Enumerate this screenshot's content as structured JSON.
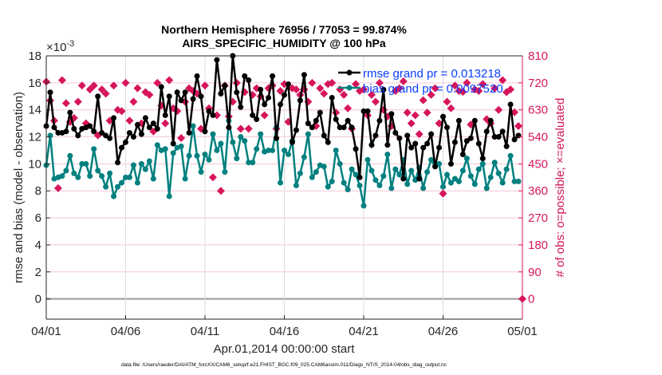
{
  "chart_data": {
    "type": "line",
    "title": "Northern Hemisphere 76956 / 77053 = 99.874%",
    "subtitle": "AIRS_SPECIFIC_HUMIDITY @ 100 hPa",
    "xlabel": "Apr.01,2014 00:00:00 start",
    "ylabel": "rmse and bias (model - observation)",
    "ylabel_right": "# of obs: o=possible; ×=evaluated",
    "y_exponent_label": "×10",
    "y_exponent_power": "-3",
    "footnote": "data file: /Users/raeder/DAI/ATM_forcXX/CAM6_setup/f.e21.FHIST_BGC.f09_025.CAM6assim.011/Diags_NTrS_2014-04/obs_diag_output.nc",
    "x_ticks": [
      "04/01",
      "04/06",
      "04/11",
      "04/16",
      "04/21",
      "04/26",
      "05/01"
    ],
    "y_ticks": [
      "0",
      "2",
      "4",
      "6",
      "8",
      "10",
      "12",
      "14",
      "16",
      "18"
    ],
    "y_right_ticks": [
      "0",
      "90",
      "180",
      "270",
      "360",
      "450",
      "540",
      "630",
      "720",
      "810"
    ],
    "ylim": [
      -0.0015,
      0.018
    ],
    "ylim_right": [
      -67.5,
      810
    ],
    "grid": true,
    "legend_position": "top-right",
    "colors": {
      "rmse": "#000000",
      "bias": "#00807f",
      "obs": "#d6155c",
      "legend_text": "#0a3cff"
    },
    "x": [
      "04/01 00",
      "04/01 06",
      "04/01 12",
      "04/01 18",
      "04/02 00",
      "04/02 06",
      "04/02 12",
      "04/02 18",
      "04/03 00",
      "04/03 06",
      "04/03 12",
      "04/03 18",
      "04/04 00",
      "04/04 06",
      "04/04 12",
      "04/04 18",
      "04/05 00",
      "04/05 06",
      "04/05 12",
      "04/05 18",
      "04/06 00",
      "04/06 06",
      "04/06 12",
      "04/06 18",
      "04/07 00",
      "04/07 06",
      "04/07 12",
      "04/07 18",
      "04/08 00",
      "04/08 06",
      "04/08 12",
      "04/08 18",
      "04/09 00",
      "04/09 06",
      "04/09 12",
      "04/09 18",
      "04/10 00",
      "04/10 06",
      "04/10 12",
      "04/10 18",
      "04/11 00",
      "04/11 06",
      "04/11 12",
      "04/11 18",
      "04/12 00",
      "04/12 06",
      "04/12 12",
      "04/12 18",
      "04/13 00",
      "04/13 06",
      "04/13 12",
      "04/13 18",
      "04/14 00",
      "04/14 06",
      "04/14 12",
      "04/14 18",
      "04/15 00",
      "04/15 06",
      "04/15 12",
      "04/15 18",
      "04/16 00",
      "04/16 06",
      "04/16 12",
      "04/16 18",
      "04/17 00",
      "04/17 06",
      "04/17 12",
      "04/17 18",
      "04/18 00",
      "04/18 06",
      "04/18 12",
      "04/18 18",
      "04/19 00",
      "04/19 06",
      "04/19 12",
      "04/19 18",
      "04/20 00",
      "04/20 06",
      "04/20 12",
      "04/20 18",
      "04/21 00",
      "04/21 06",
      "04/21 12",
      "04/21 18",
      "04/22 00",
      "04/22 06",
      "04/22 12",
      "04/22 18",
      "04/23 00",
      "04/23 06",
      "04/23 12",
      "04/23 18",
      "04/24 00",
      "04/24 06",
      "04/24 12",
      "04/24 18",
      "04/25 00",
      "04/25 06",
      "04/25 12",
      "04/25 18",
      "04/26 00",
      "04/26 06",
      "04/26 12",
      "04/26 18",
      "04/27 00",
      "04/27 06",
      "04/27 12",
      "04/27 18",
      "04/28 00",
      "04/28 06",
      "04/28 12",
      "04/28 18",
      "04/29 00",
      "04/29 06",
      "04/29 12",
      "04/29 18",
      "04/30 00",
      "04/30 06",
      "04/30 12",
      "04/30 18"
    ],
    "series": [
      {
        "name": "rmse grand pr = 0.013218",
        "axis": "left",
        "unit_scale": 0.001,
        "values": [
          12.8,
          15.3,
          12.7,
          12.3,
          12.3,
          12.4,
          13.8,
          12.6,
          12.1,
          12.6,
          12.7,
          12.8,
          12.4,
          15.0,
          12.3,
          12.1,
          11.9,
          13.4,
          10.1,
          11.2,
          11.6,
          12.3,
          12.0,
          12.9,
          12.2,
          13.4,
          12.7,
          13.0,
          12.6,
          15.7,
          13.6,
          15.0,
          11.5,
          15.3,
          14.7,
          15.3,
          12.3,
          14.8,
          16.5,
          15.0,
          12.4,
          13.9,
          13.6,
          17.7,
          15.2,
          15.8,
          12.7,
          18.0,
          15.3,
          14.2,
          16.5,
          16.2,
          13.6,
          13.3,
          15.5,
          14.4,
          14.9,
          16.5,
          11.9,
          14.4,
          15.1,
          15.9,
          11.6,
          12.5,
          14.7,
          16.6,
          13.0,
          12.7,
          13.2,
          13.8,
          12.1,
          11.6,
          14.9,
          13.3,
          12.7,
          12.7,
          13.2,
          12.7,
          11.1,
          9.0,
          13.9,
          13.9,
          11.4,
          12.1,
          13.2,
          15.5,
          11.4,
          13.7,
          12.3,
          11.9,
          8.9,
          12.1,
          11.2,
          11.5,
          8.9,
          11.2,
          11.5,
          12.2,
          9.8,
          11.2,
          13.5,
          12.7,
          10.0,
          11.6,
          13.2,
          10.7,
          11.7,
          11.9,
          13.2,
          11.5,
          10.4,
          12.4,
          13.2,
          12.0,
          12.0,
          12.4,
          11.3,
          14.4,
          11.8,
          12.1
        ]
      },
      {
        "name": "bias grand pr = 0.0097520",
        "axis": "left",
        "unit_scale": 0.001,
        "values": [
          9.9,
          12.1,
          8.9,
          9.0,
          9.1,
          9.5,
          10.6,
          9.3,
          9.0,
          10.0,
          10.0,
          9.1,
          11.1,
          9.5,
          9.1,
          8.3,
          9.3,
          7.6,
          8.3,
          8.6,
          9.0,
          9.0,
          9.9,
          8.6,
          10.0,
          9.6,
          10.2,
          8.9,
          11.4,
          11.0,
          11.1,
          7.6,
          10.8,
          11.2,
          11.3,
          8.9,
          10.6,
          12.8,
          10.6,
          9.4,
          10.7,
          10.3,
          12.2,
          11.0,
          11.5,
          9.4,
          13.2,
          11.6,
          10.4,
          12.0,
          11.7,
          10.1,
          10.1,
          11.1,
          12.2,
          10.9,
          11.0,
          11.0,
          12.7,
          8.6,
          11.0,
          10.7,
          11.7,
          8.4,
          9.3,
          10.5,
          12.2,
          9.0,
          9.4,
          9.9,
          9.8,
          8.3,
          8.7,
          11.0,
          10.0,
          8.6,
          8.1,
          9.6,
          9.2,
          8.4,
          6.9,
          10.3,
          9.5,
          8.8,
          8.4,
          9.1,
          10.7,
          8.2,
          9.6,
          9.2,
          10.3,
          8.5,
          9.5,
          8.8,
          9.7,
          8.2,
          9.4,
          10.3,
          9.8,
          10.0,
          8.3,
          9.2,
          8.6,
          8.9,
          8.7,
          9.5,
          10.4,
          9.1,
          8.5,
          9.6,
          10.0,
          8.2,
          9.0,
          10.1,
          9.3,
          8.6,
          9.6,
          10.6,
          8.7,
          8.7
        ]
      },
      {
        "axis": "right",
        "values": [
          724,
          661,
          594,
          369,
          729,
          652,
          590,
          603,
          657,
          711,
          585,
          698,
          711,
          545,
          698,
          684,
          594,
          711,
          630,
          626,
          720,
          594,
          657,
          702,
          585,
          689,
          680,
          558,
          720,
          644,
          585,
          729,
          635,
          626,
          536,
          657,
          702,
          693,
          684,
          567,
          711,
          635,
          405,
          612,
          360,
          711,
          608,
          657,
          720,
          567,
          689,
          567,
          680,
          702,
          675,
          612,
          702,
          711,
          567,
          693,
          716,
          590,
          702,
          698,
          680,
          698,
          657,
          720,
          576,
          702,
          684,
          716,
          720,
          621,
          698,
          680,
          635,
          567,
          716,
          693,
          698,
          612,
          680,
          657,
          720,
          630,
          608,
          576,
          693,
          702,
          725,
          621,
          585,
          612,
          549,
          662,
          621,
          680,
          702,
          585,
          351,
          657,
          635,
          711,
          693,
          690,
          720,
          581,
          698,
          693,
          716,
          599,
          585,
          702,
          630,
          729,
          689,
          698,
          622,
          576
        ],
        "end_point": {
          "x": "05/01 00",
          "value": 0
        }
      }
    ]
  }
}
